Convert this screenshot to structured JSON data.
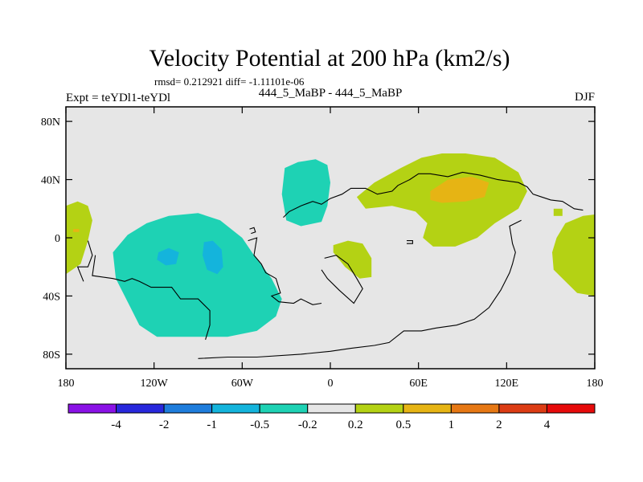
{
  "chart_data": {
    "type": "heatmap",
    "title": "Velocity Potential at 200 hPa (km2/s)",
    "stats": "rmsd= 0.212921 diff= -1.11101e-06",
    "left_label": "Expt = teYDl1-teYDl",
    "center_label": "444_5_MaBP - 444_5_MaBP",
    "right_label": "DJF",
    "xlim": [
      -180,
      180
    ],
    "ylim": [
      -90,
      90
    ],
    "x_ticks": [
      {
        "value": -180,
        "label": "180"
      },
      {
        "value": -120,
        "label": "120W"
      },
      {
        "value": -60,
        "label": "60W"
      },
      {
        "value": 0,
        "label": "0"
      },
      {
        "value": 60,
        "label": "60E"
      },
      {
        "value": 120,
        "label": "120E"
      },
      {
        "value": 180,
        "label": "180"
      }
    ],
    "y_ticks": [
      {
        "value": 80,
        "label": "80N"
      },
      {
        "value": 40,
        "label": "40N"
      },
      {
        "value": 0,
        "label": "0"
      },
      {
        "value": -40,
        "label": "40S"
      },
      {
        "value": -80,
        "label": "80S"
      }
    ],
    "colorbar": {
      "levels": [
        "-4",
        "-2",
        "-1",
        "-0.5",
        "-0.2",
        "0.2",
        "0.5",
        "1",
        "2",
        "4"
      ],
      "colors": [
        "#8a12e6",
        "#2828dc",
        "#1e7ddc",
        "#14b4dc",
        "#1ed2b4",
        "#e6e6e6",
        "#b4d214",
        "#e6b414",
        "#e67814",
        "#dc3c14",
        "#e60a0a"
      ]
    },
    "background_color": "#e6e6e6",
    "regions": [
      {
        "name": "west-pacific-positive",
        "color": "#b4d214",
        "lonlat": [
          [
            -180,
            22
          ],
          [
            -172,
            25
          ],
          [
            -165,
            22
          ],
          [
            -162,
            12
          ],
          [
            -165,
            -2
          ],
          [
            -170,
            -18
          ],
          [
            -180,
            -25
          ]
        ]
      },
      {
        "name": "small-orange-spot",
        "color": "#e6b414",
        "lonlat": [
          [
            -175,
            6
          ],
          [
            -171,
            6
          ],
          [
            -171,
            4
          ],
          [
            -175,
            4
          ]
        ]
      },
      {
        "name": "south-america-pacific-negative",
        "color": "#1ed2b4",
        "lonlat": [
          [
            -148,
            -10
          ],
          [
            -138,
            2
          ],
          [
            -125,
            10
          ],
          [
            -110,
            15
          ],
          [
            -90,
            17
          ],
          [
            -75,
            12
          ],
          [
            -60,
            0
          ],
          [
            -52,
            -12
          ],
          [
            -40,
            -28
          ],
          [
            -33,
            -42
          ],
          [
            -37,
            -54
          ],
          [
            -50,
            -64
          ],
          [
            -70,
            -68
          ],
          [
            -95,
            -68
          ],
          [
            -118,
            -68
          ],
          [
            -130,
            -60
          ],
          [
            -138,
            -44
          ],
          [
            -146,
            -28
          ]
        ]
      },
      {
        "name": "negative-core-1",
        "color": "#14b4dc",
        "lonlat": [
          [
            -117,
            -10
          ],
          [
            -110,
            -7
          ],
          [
            -103,
            -10
          ],
          [
            -105,
            -18
          ],
          [
            -112,
            -19
          ],
          [
            -118,
            -15
          ]
        ]
      },
      {
        "name": "negative-core-2",
        "color": "#14b4dc",
        "lonlat": [
          [
            -86,
            -3
          ],
          [
            -80,
            -2
          ],
          [
            -74,
            -8
          ],
          [
            -73,
            -20
          ],
          [
            -77,
            -25
          ],
          [
            -84,
            -22
          ],
          [
            -87,
            -12
          ]
        ]
      },
      {
        "name": "north-atlantic-negative",
        "color": "#1ed2b4",
        "lonlat": [
          [
            -31,
            48
          ],
          [
            -22,
            52
          ],
          [
            -10,
            54
          ],
          [
            -2,
            50
          ],
          [
            0,
            38
          ],
          [
            -2,
            22
          ],
          [
            -6,
            11
          ],
          [
            -20,
            8
          ],
          [
            -30,
            12
          ],
          [
            -33,
            30
          ]
        ]
      },
      {
        "name": "asia-positive",
        "color": "#b4d214",
        "lonlat": [
          [
            18,
            28
          ],
          [
            30,
            38
          ],
          [
            48,
            48
          ],
          [
            62,
            55
          ],
          [
            76,
            58
          ],
          [
            92,
            58
          ],
          [
            112,
            55
          ],
          [
            128,
            45
          ],
          [
            134,
            32
          ],
          [
            128,
            20
          ],
          [
            112,
            10
          ],
          [
            100,
            0
          ],
          [
            85,
            -6
          ],
          [
            70,
            -6
          ],
          [
            63,
            0
          ],
          [
            66,
            10
          ],
          [
            58,
            18
          ],
          [
            42,
            22
          ],
          [
            24,
            20
          ]
        ]
      },
      {
        "name": "asia-core",
        "color": "#e6b414",
        "lonlat": [
          [
            68,
            32
          ],
          [
            80,
            40
          ],
          [
            96,
            42
          ],
          [
            108,
            38
          ],
          [
            105,
            28
          ],
          [
            92,
            25
          ],
          [
            76,
            24
          ],
          [
            68,
            26
          ]
        ]
      },
      {
        "name": "africa-positive",
        "color": "#b4d214",
        "lonlat": [
          [
            2,
            -5
          ],
          [
            12,
            -2
          ],
          [
            22,
            -4
          ],
          [
            28,
            -14
          ],
          [
            28,
            -27
          ],
          [
            20,
            -28
          ],
          [
            10,
            -20
          ],
          [
            2,
            -10
          ]
        ]
      },
      {
        "name": "east-pacific-positive",
        "color": "#b4d214",
        "lonlat": [
          [
            160,
            10
          ],
          [
            172,
            15
          ],
          [
            180,
            16
          ],
          [
            180,
            -40
          ],
          [
            168,
            -38
          ],
          [
            152,
            -22
          ],
          [
            151,
            -10
          ],
          [
            154,
            0
          ]
        ]
      },
      {
        "name": "small-positive-dot",
        "color": "#b4d214",
        "lonlat": [
          [
            152,
            20
          ],
          [
            158,
            20
          ],
          [
            158,
            15
          ],
          [
            152,
            15
          ]
        ]
      }
    ],
    "coastlines": [
      {
        "name": "south-america-coast",
        "lonlat": [
          [
            -160,
            -12
          ],
          [
            -162,
            -26
          ],
          [
            -148,
            -28
          ],
          [
            -140,
            -30
          ],
          [
            -135,
            -28
          ],
          [
            -130,
            -30
          ],
          [
            -122,
            -34
          ],
          [
            -115,
            -34
          ],
          [
            -108,
            -34
          ],
          [
            -102,
            -42
          ],
          [
            -90,
            -42
          ],
          [
            -82,
            -50
          ],
          [
            -82,
            -60
          ],
          [
            -85,
            -70
          ]
        ]
      },
      {
        "name": "west-islands",
        "lonlat": [
          [
            -165,
            -2
          ],
          [
            -162,
            -12
          ],
          [
            -165,
            -20
          ],
          [
            -172,
            -20
          ],
          [
            -168,
            -30
          ]
        ]
      },
      {
        "name": "central-america-coast",
        "lonlat": [
          [
            -56,
            -2
          ],
          [
            -50,
            0
          ],
          [
            -52,
            -12
          ],
          [
            -47,
            -18
          ],
          [
            -44,
            -24
          ],
          [
            -37,
            -28
          ],
          [
            -34,
            -38
          ],
          [
            -40,
            -40
          ],
          [
            -35,
            -44
          ],
          [
            -25,
            -45
          ],
          [
            -20,
            -42
          ],
          [
            -12,
            -46
          ],
          [
            -6,
            -45
          ]
        ]
      },
      {
        "name": "small-island-1",
        "lonlat": [
          [
            -55,
            6
          ],
          [
            -52,
            7
          ],
          [
            -51,
            4
          ],
          [
            -54,
            3
          ]
        ]
      },
      {
        "name": "europe-africa-coast",
        "lonlat": [
          [
            -32,
            14
          ],
          [
            -28,
            18
          ],
          [
            -20,
            22
          ],
          [
            -12,
            25
          ],
          [
            -6,
            23
          ],
          [
            0,
            27
          ],
          [
            8,
            30
          ],
          [
            14,
            34
          ],
          [
            24,
            34
          ],
          [
            32,
            30
          ],
          [
            42,
            32
          ],
          [
            46,
            36
          ],
          [
            54,
            40
          ],
          [
            60,
            44
          ],
          [
            68,
            44
          ],
          [
            80,
            42
          ],
          [
            90,
            45
          ],
          [
            102,
            43
          ],
          [
            114,
            40
          ],
          [
            128,
            38
          ],
          [
            134,
            35
          ],
          [
            138,
            30
          ],
          [
            144,
            28
          ],
          [
            150,
            26
          ],
          [
            158,
            25
          ],
          [
            166,
            20
          ],
          [
            172,
            19
          ]
        ]
      },
      {
        "name": "africa-outline",
        "lonlat": [
          [
            -4,
            -14
          ],
          [
            4,
            -12
          ],
          [
            12,
            -18
          ],
          [
            18,
            -28
          ],
          [
            22,
            -35
          ],
          [
            16,
            -45
          ],
          [
            6,
            -36
          ],
          [
            -2,
            -28
          ],
          [
            -6,
            -22
          ]
        ]
      },
      {
        "name": "indian-ocean-coast",
        "lonlat": [
          [
            130,
            12
          ],
          [
            122,
            8
          ],
          [
            124,
            -4
          ],
          [
            126,
            -10
          ],
          [
            124,
            -18
          ],
          [
            122,
            -24
          ],
          [
            116,
            -36
          ],
          [
            108,
            -48
          ],
          [
            98,
            -56
          ],
          [
            86,
            -60
          ],
          [
            72,
            -62
          ],
          [
            62,
            -64
          ],
          [
            50,
            -64
          ],
          [
            40,
            -72
          ],
          [
            30,
            -74
          ],
          [
            14,
            -76
          ],
          [
            0,
            -78
          ],
          [
            -20,
            -80
          ],
          [
            -50,
            -82
          ],
          [
            -70,
            -82
          ],
          [
            -90,
            -83
          ]
        ]
      },
      {
        "name": "arabian-island",
        "lonlat": [
          [
            52,
            -2
          ],
          [
            56,
            -2
          ],
          [
            56,
            -4
          ],
          [
            52,
            -4
          ]
        ]
      }
    ]
  }
}
